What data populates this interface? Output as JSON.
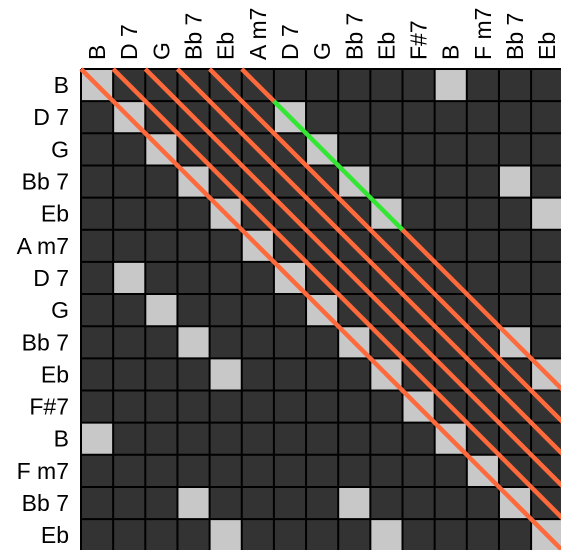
{
  "chart_data": {
    "type": "heatmap",
    "labels": [
      "B",
      "D 7",
      "G",
      "Bb 7",
      "Eb",
      "A m7",
      "D 7",
      "G",
      "Bb 7",
      "Eb",
      "F#7",
      "B",
      "F m7",
      "Bb 7",
      "Eb"
    ],
    "match_value": 1,
    "matrix": [
      [
        1,
        0,
        0,
        0,
        0,
        0,
        0,
        0,
        0,
        0,
        0,
        1,
        0,
        0,
        0
      ],
      [
        0,
        1,
        0,
        0,
        0,
        0,
        1,
        0,
        0,
        0,
        0,
        0,
        0,
        0,
        0
      ],
      [
        0,
        0,
        1,
        0,
        0,
        0,
        0,
        1,
        0,
        0,
        0,
        0,
        0,
        0,
        0
      ],
      [
        0,
        0,
        0,
        1,
        0,
        0,
        0,
        0,
        1,
        0,
        0,
        0,
        0,
        1,
        0
      ],
      [
        0,
        0,
        0,
        0,
        1,
        0,
        0,
        0,
        0,
        1,
        0,
        0,
        0,
        0,
        1
      ],
      [
        0,
        0,
        0,
        0,
        0,
        1,
        0,
        0,
        0,
        0,
        0,
        0,
        0,
        0,
        0
      ],
      [
        0,
        1,
        0,
        0,
        0,
        0,
        1,
        0,
        0,
        0,
        0,
        0,
        0,
        0,
        0
      ],
      [
        0,
        0,
        1,
        0,
        0,
        0,
        0,
        1,
        0,
        0,
        0,
        0,
        0,
        0,
        0
      ],
      [
        0,
        0,
        0,
        1,
        0,
        0,
        0,
        0,
        1,
        0,
        0,
        0,
        0,
        1,
        0
      ],
      [
        0,
        0,
        0,
        0,
        1,
        0,
        0,
        0,
        0,
        1,
        0,
        0,
        0,
        0,
        1
      ],
      [
        0,
        0,
        0,
        0,
        0,
        0,
        0,
        0,
        0,
        0,
        1,
        0,
        0,
        0,
        0
      ],
      [
        1,
        0,
        0,
        0,
        0,
        0,
        0,
        0,
        0,
        0,
        0,
        1,
        0,
        0,
        0
      ],
      [
        0,
        0,
        0,
        0,
        0,
        0,
        0,
        0,
        0,
        0,
        0,
        0,
        1,
        0,
        0
      ],
      [
        0,
        0,
        0,
        1,
        0,
        0,
        0,
        0,
        1,
        0,
        0,
        0,
        0,
        1,
        0
      ],
      [
        0,
        0,
        0,
        0,
        1,
        0,
        0,
        0,
        0,
        1,
        0,
        0,
        0,
        0,
        1
      ]
    ],
    "diagonal_lines": [
      {
        "offset": 0,
        "from_row": 0,
        "to_row": 14,
        "color": "#ff6a3d"
      },
      {
        "offset": 1,
        "from_row": 0,
        "to_row": 13,
        "color": "#ff6a3d"
      },
      {
        "offset": 2,
        "from_row": 0,
        "to_row": 12,
        "color": "#ff6a3d"
      },
      {
        "offset": 3,
        "from_row": 0,
        "to_row": 11,
        "color": "#ff6a3d"
      },
      {
        "offset": 4,
        "from_row": 0,
        "to_row": 10,
        "color": "#ff6a3d"
      },
      {
        "offset": 5,
        "from_row": 0,
        "to_row": 0,
        "color": "#ff6a3d"
      },
      {
        "offset": 5,
        "from_row": 1,
        "to_row": 4,
        "color": "#33e633"
      },
      {
        "offset": 5,
        "from_row": 5,
        "to_row": 9,
        "color": "#ff6a3d"
      }
    ],
    "legend": "none",
    "grid": true
  },
  "colors": {
    "cell_empty": "#333333",
    "cell_match": "#c8c8c8",
    "grid_line": "#000000",
    "diagonal": "#ff6a3d",
    "highlight": "#33e633"
  }
}
